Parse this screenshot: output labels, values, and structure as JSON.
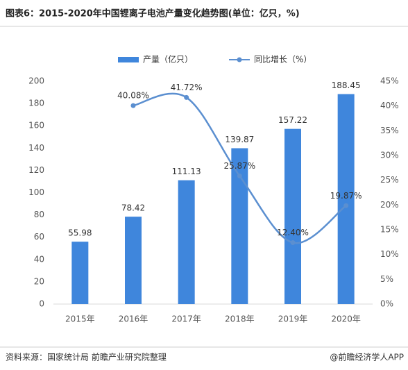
{
  "chart_data": {
    "type": "bar",
    "title": "图表6：2015-2020年中国锂离子电池产量变化趋势图(单位：亿只，%)",
    "categories": [
      "2015年",
      "2016年",
      "2017年",
      "2018年",
      "2019年",
      "2020年"
    ],
    "series": [
      {
        "name": "产量（亿只）",
        "type": "bar",
        "color": "#3f86dc",
        "values": [
          55.98,
          78.42,
          111.13,
          139.87,
          157.22,
          188.45
        ]
      },
      {
        "name": "同比增长（%）",
        "type": "line",
        "axis": "y2",
        "color": "#5b8fd0",
        "values": [
          null,
          40.08,
          41.72,
          25.87,
          12.4,
          19.87
        ],
        "value_labels": [
          null,
          "40.08%",
          "41.72%",
          "25.87%",
          "12.40%",
          "19.87%"
        ]
      }
    ],
    "ylim": [
      0,
      200
    ],
    "yticks": [
      0,
      20,
      40,
      60,
      80,
      100,
      120,
      140,
      160,
      180,
      200
    ],
    "y2lim": [
      0,
      45
    ],
    "y2ticks": [
      {
        "value": 0,
        "label": "0%"
      },
      {
        "value": 5,
        "label": "5%"
      },
      {
        "value": 10,
        "label": "10%"
      },
      {
        "value": 15,
        "label": "15%"
      },
      {
        "value": 20,
        "label": "20%"
      },
      {
        "value": 25,
        "label": "25%"
      },
      {
        "value": 30,
        "label": "30%"
      },
      {
        "value": 35,
        "label": "35%"
      },
      {
        "value": 40,
        "label": "40%"
      },
      {
        "value": 45,
        "label": "45%"
      }
    ],
    "grid": false,
    "legend": "top",
    "source": "资料来源：国家统计局 前瞻产业研究院整理",
    "credit": "@前瞻经济学人APP"
  }
}
